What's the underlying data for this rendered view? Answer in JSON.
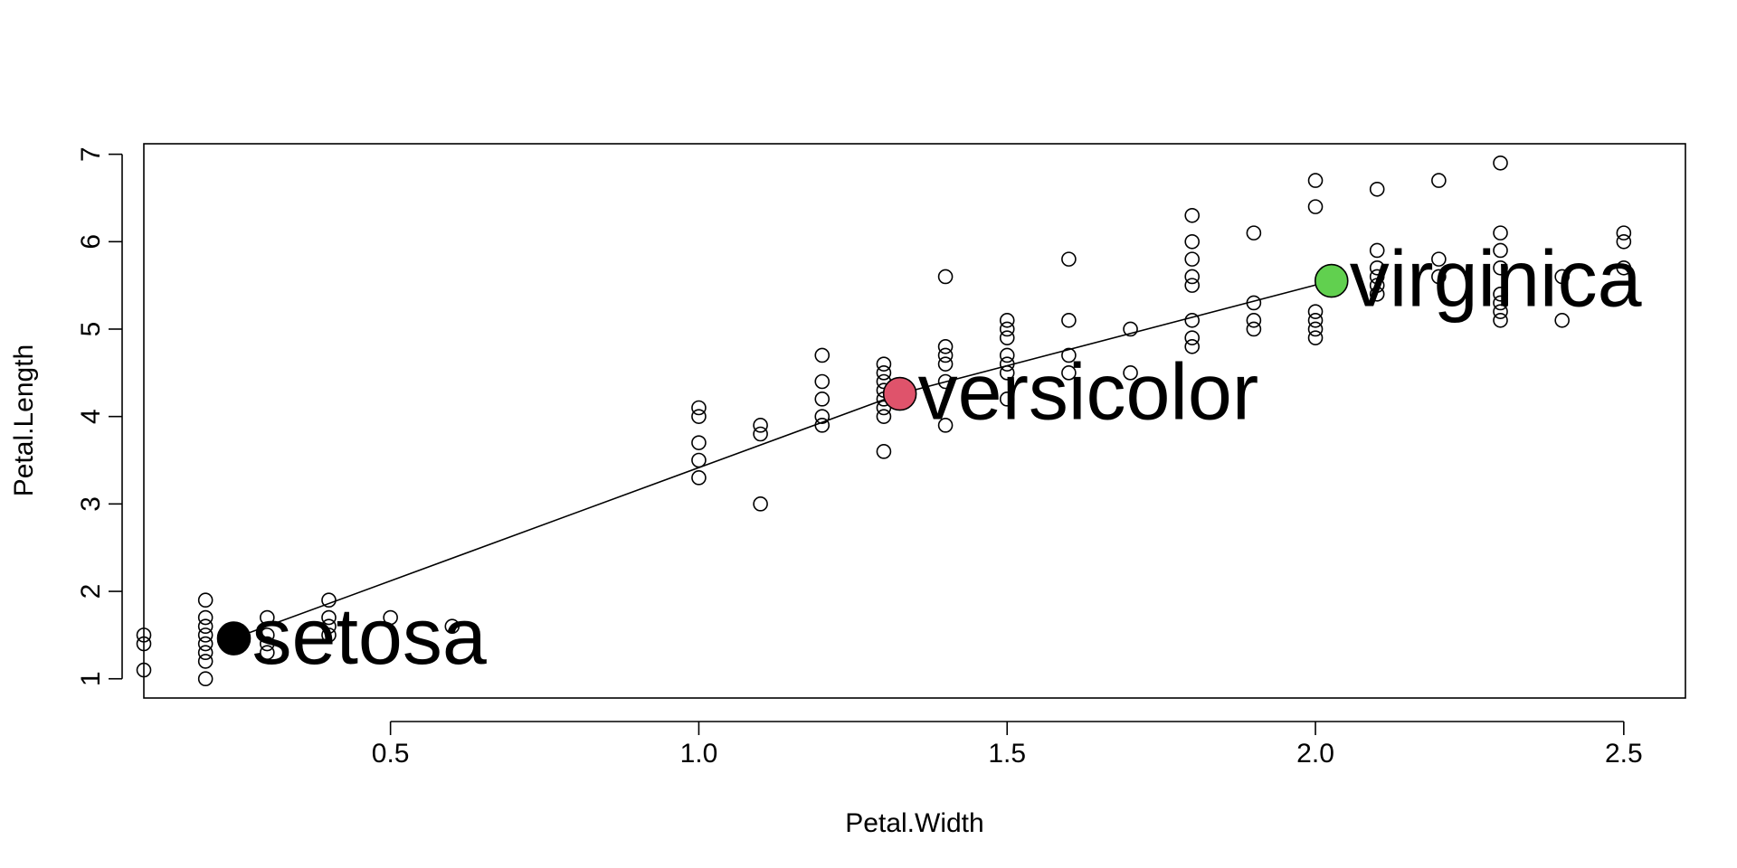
{
  "chart_data": {
    "type": "scatter",
    "title": "",
    "xlabel": "Petal.Width",
    "ylabel": "Petal.Length",
    "xlim": [
      0.1,
      2.6
    ],
    "ylim": [
      0.78,
      7.12
    ],
    "grid": false,
    "x_ticks": [
      "0.5",
      "1.0",
      "1.5",
      "2.0",
      "2.5"
    ],
    "y_ticks": [
      "1",
      "2",
      "3",
      "4",
      "5",
      "6",
      "7"
    ],
    "points": [
      [
        0.1,
        1.1
      ],
      [
        0.1,
        1.4
      ],
      [
        0.1,
        1.5
      ],
      [
        0.2,
        1.0
      ],
      [
        0.2,
        1.2
      ],
      [
        0.2,
        1.3
      ],
      [
        0.2,
        1.4
      ],
      [
        0.2,
        1.5
      ],
      [
        0.2,
        1.6
      ],
      [
        0.2,
        1.7
      ],
      [
        0.2,
        1.9
      ],
      [
        0.3,
        1.3
      ],
      [
        0.3,
        1.4
      ],
      [
        0.3,
        1.5
      ],
      [
        0.3,
        1.7
      ],
      [
        0.4,
        1.5
      ],
      [
        0.4,
        1.6
      ],
      [
        0.4,
        1.7
      ],
      [
        0.4,
        1.9
      ],
      [
        0.5,
        1.7
      ],
      [
        0.6,
        1.6
      ],
      [
        1.0,
        3.3
      ],
      [
        1.0,
        3.5
      ],
      [
        1.0,
        3.7
      ],
      [
        1.0,
        4.0
      ],
      [
        1.0,
        4.1
      ],
      [
        1.1,
        3.0
      ],
      [
        1.1,
        3.8
      ],
      [
        1.1,
        3.9
      ],
      [
        1.2,
        3.9
      ],
      [
        1.2,
        4.0
      ],
      [
        1.2,
        4.2
      ],
      [
        1.2,
        4.4
      ],
      [
        1.2,
        4.7
      ],
      [
        1.3,
        3.6
      ],
      [
        1.3,
        4.0
      ],
      [
        1.3,
        4.1
      ],
      [
        1.3,
        4.2
      ],
      [
        1.3,
        4.3
      ],
      [
        1.3,
        4.4
      ],
      [
        1.3,
        4.5
      ],
      [
        1.3,
        4.6
      ],
      [
        1.4,
        3.9
      ],
      [
        1.4,
        4.4
      ],
      [
        1.4,
        4.6
      ],
      [
        1.4,
        4.7
      ],
      [
        1.4,
        4.8
      ],
      [
        1.4,
        5.6
      ],
      [
        1.5,
        4.2
      ],
      [
        1.5,
        4.5
      ],
      [
        1.5,
        4.6
      ],
      [
        1.5,
        4.7
      ],
      [
        1.5,
        4.9
      ],
      [
        1.5,
        5.0
      ],
      [
        1.5,
        5.1
      ],
      [
        1.6,
        4.5
      ],
      [
        1.6,
        4.7
      ],
      [
        1.6,
        5.1
      ],
      [
        1.6,
        5.8
      ],
      [
        1.7,
        4.5
      ],
      [
        1.7,
        5.0
      ],
      [
        1.8,
        4.8
      ],
      [
        1.8,
        4.9
      ],
      [
        1.8,
        5.1
      ],
      [
        1.8,
        5.5
      ],
      [
        1.8,
        5.6
      ],
      [
        1.8,
        5.8
      ],
      [
        1.8,
        6.0
      ],
      [
        1.8,
        6.3
      ],
      [
        1.9,
        5.0
      ],
      [
        1.9,
        5.1
      ],
      [
        1.9,
        5.3
      ],
      [
        1.9,
        6.1
      ],
      [
        2.0,
        4.9
      ],
      [
        2.0,
        5.0
      ],
      [
        2.0,
        5.1
      ],
      [
        2.0,
        5.2
      ],
      [
        2.0,
        6.4
      ],
      [
        2.0,
        6.7
      ],
      [
        2.1,
        5.4
      ],
      [
        2.1,
        5.5
      ],
      [
        2.1,
        5.6
      ],
      [
        2.1,
        5.7
      ],
      [
        2.1,
        5.9
      ],
      [
        2.1,
        6.6
      ],
      [
        2.2,
        5.6
      ],
      [
        2.2,
        5.8
      ],
      [
        2.2,
        6.7
      ],
      [
        2.3,
        5.1
      ],
      [
        2.3,
        5.2
      ],
      [
        2.3,
        5.3
      ],
      [
        2.3,
        5.4
      ],
      [
        2.3,
        5.7
      ],
      [
        2.3,
        5.9
      ],
      [
        2.3,
        6.1
      ],
      [
        2.3,
        6.9
      ],
      [
        2.4,
        5.1
      ],
      [
        2.4,
        5.6
      ],
      [
        2.5,
        5.7
      ],
      [
        2.5,
        6.0
      ],
      [
        2.5,
        6.1
      ]
    ],
    "centroids": [
      {
        "label": "setosa",
        "x": 0.246,
        "y": 1.462,
        "color": "#000000"
      },
      {
        "label": "versicolor",
        "x": 1.326,
        "y": 4.26,
        "color": "#DF536B"
      },
      {
        "label": "virginica",
        "x": 2.026,
        "y": 5.552,
        "color": "#61D04F"
      }
    ]
  }
}
